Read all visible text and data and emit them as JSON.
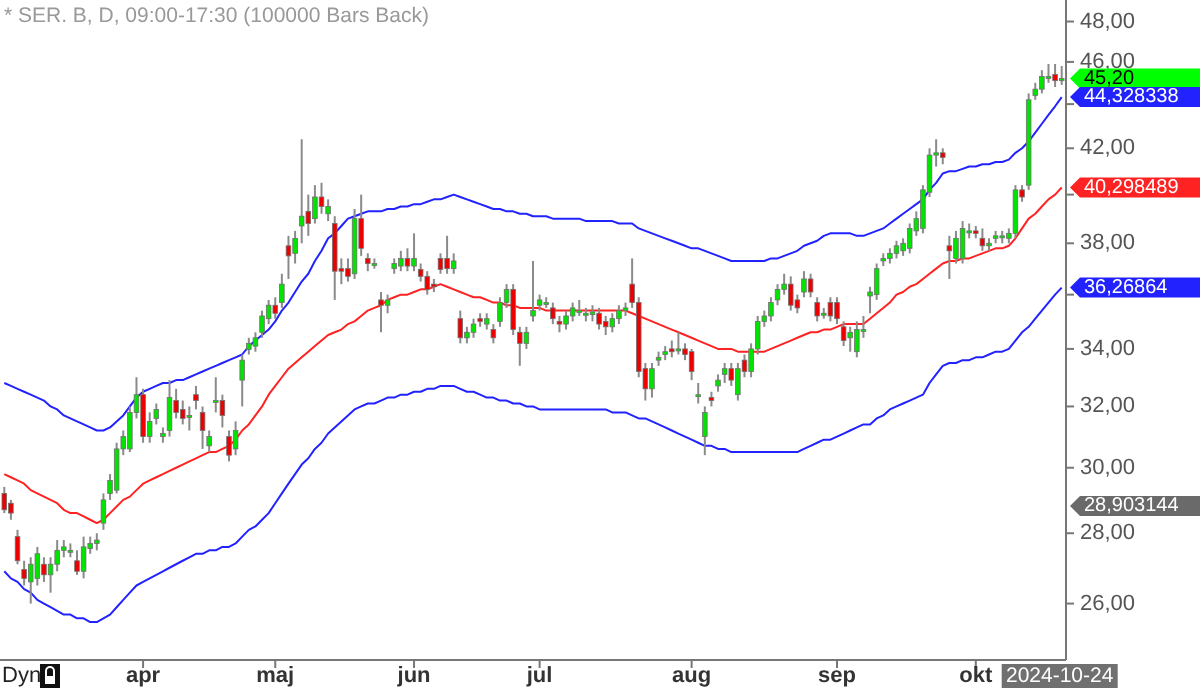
{
  "chart_data": {
    "type": "candlestick",
    "title": "* SER. B, D, 09:00-17:30 (100000 Bars Back)",
    "categories": [
      null,
      null,
      null,
      null,
      null,
      null,
      null,
      null,
      null,
      null,
      null,
      null,
      null,
      null,
      null,
      null,
      null,
      null,
      null,
      null,
      null,
      "apr",
      null,
      null,
      null,
      null,
      null,
      null,
      null,
      null,
      null,
      null,
      null,
      null,
      null,
      null,
      null,
      null,
      null,
      null,
      null,
      "maj",
      null,
      null,
      null,
      null,
      null,
      null,
      null,
      null,
      null,
      null,
      null,
      null,
      null,
      null,
      null,
      null,
      null,
      null,
      null,
      null,
      "jun",
      null,
      null,
      null,
      null,
      null,
      null,
      null,
      null,
      null,
      null,
      null,
      null,
      null,
      null,
      null,
      null,
      null,
      null,
      "jul",
      null,
      null,
      null,
      null,
      null,
      null,
      null,
      null,
      null,
      null,
      null,
      null,
      null,
      null,
      null,
      null,
      null,
      null,
      null,
      null,
      null,
      null,
      "aug",
      null,
      null,
      null,
      null,
      null,
      null,
      null,
      null,
      null,
      null,
      null,
      null,
      null,
      null,
      null,
      null,
      null,
      null,
      null,
      null,
      null,
      "sep",
      null,
      null,
      null,
      null,
      null,
      null,
      null,
      null,
      null,
      null,
      null,
      null,
      null,
      null,
      null,
      null,
      null,
      null,
      null,
      null,
      "okt",
      null,
      null,
      null,
      null,
      null,
      null,
      null,
      null,
      null,
      null,
      null,
      null,
      null
    ],
    "ohlc": [
      [
        29.2,
        29.4,
        28.6,
        28.7
      ],
      [
        28.9,
        29.0,
        28.4,
        28.6
      ],
      [
        27.9,
        28.1,
        27.1,
        27.2
      ],
      [
        26.95,
        27.2,
        26.5,
        26.7
      ],
      [
        26.6,
        27.3,
        26.0,
        27.1
      ],
      [
        26.7,
        27.6,
        26.5,
        27.4
      ],
      [
        27.1,
        27.3,
        26.6,
        26.8
      ],
      [
        26.8,
        27.3,
        26.3,
        27.1
      ],
      [
        27.1,
        27.8,
        26.9,
        27.5
      ],
      [
        27.5,
        27.8,
        27.3,
        27.6
      ],
      [
        27.5,
        27.7,
        27.3,
        27.5
      ],
      [
        27.2,
        27.5,
        26.8,
        26.9
      ],
      [
        26.9,
        27.9,
        26.7,
        27.6
      ],
      [
        27.55,
        27.9,
        27.4,
        27.7
      ],
      [
        27.7,
        28.0,
        27.5,
        27.8
      ],
      [
        28.3,
        29.2,
        28.1,
        29.0
      ],
      [
        29.2,
        29.8,
        29.0,
        29.6
      ],
      [
        29.3,
        30.8,
        29.2,
        30.6
      ],
      [
        30.6,
        31.2,
        30.4,
        31.0
      ],
      [
        30.6,
        32.0,
        30.5,
        31.8
      ],
      [
        31.8,
        33.0,
        31.6,
        32.4
      ],
      [
        32.4,
        32.6,
        30.8,
        31.0
      ],
      [
        31.0,
        31.8,
        30.8,
        31.5
      ],
      [
        31.6,
        32.1,
        31.4,
        31.9
      ],
      [
        31.0,
        31.3,
        30.8,
        31.1
      ],
      [
        31.2,
        32.9,
        31.0,
        32.3
      ],
      [
        32.2,
        32.6,
        31.6,
        31.8
      ],
      [
        31.9,
        32.2,
        31.4,
        31.6
      ],
      [
        31.7,
        32.0,
        31.2,
        31.7
      ],
      [
        32.4,
        32.7,
        31.9,
        32.2
      ],
      [
        31.8,
        32.0,
        30.6,
        31.2
      ],
      [
        30.7,
        31.2,
        30.5,
        31.0
      ],
      [
        32.2,
        33.0,
        31.8,
        32.2
      ],
      [
        32.2,
        32.4,
        31.3,
        31.7
      ],
      [
        31.0,
        31.2,
        30.2,
        30.4
      ],
      [
        30.6,
        31.5,
        30.4,
        31.2
      ],
      [
        32.9,
        33.8,
        32.0,
        33.6
      ],
      [
        33.98,
        34.4,
        33.8,
        34.2
      ],
      [
        34.1,
        34.6,
        33.9,
        34.4
      ],
      [
        34.6,
        35.4,
        34.4,
        35.2
      ],
      [
        35.1,
        35.8,
        34.9,
        35.6
      ],
      [
        35.6,
        35.9,
        35.1,
        35.3
      ],
      [
        35.7,
        36.8,
        35.5,
        36.4
      ],
      [
        37.9,
        38.3,
        36.6,
        37.5
      ],
      [
        37.6,
        38.5,
        37.2,
        38.2
      ],
      [
        38.7,
        42.4,
        38.0,
        39.1
      ],
      [
        39.3,
        40.0,
        38.3,
        38.8
      ],
      [
        39.0,
        40.4,
        38.8,
        39.9
      ],
      [
        39.9,
        40.5,
        39.2,
        39.5
      ],
      [
        39.2,
        39.8,
        38.9,
        39.5
      ],
      [
        38.8,
        39.1,
        35.8,
        36.9
      ],
      [
        37.0,
        37.4,
        36.4,
        36.9
      ],
      [
        37.0,
        37.4,
        36.5,
        36.7
      ],
      [
        36.8,
        39.4,
        36.6,
        39.0
      ],
      [
        39.0,
        40.0,
        37.5,
        37.8
      ],
      [
        37.4,
        37.6,
        36.9,
        37.2
      ],
      [
        37.2,
        37.4,
        37.0,
        37.2
      ],
      [
        35.8,
        36.1,
        34.6,
        35.6
      ],
      [
        35.6,
        36.0,
        35.3,
        35.8
      ],
      [
        37.0,
        37.4,
        36.8,
        37.2
      ],
      [
        37.1,
        37.7,
        36.9,
        37.4
      ],
      [
        37.4,
        37.8,
        36.9,
        37.1
      ],
      [
        37.1,
        38.4,
        36.9,
        37.4
      ],
      [
        36.97,
        37.2,
        36.5,
        36.7
      ],
      [
        36.7,
        36.9,
        36.0,
        36.2
      ],
      [
        36.4,
        36.6,
        36.1,
        36.3
      ],
      [
        37.4,
        37.6,
        36.8,
        36.97
      ],
      [
        37.4,
        38.3,
        36.8,
        37.0
      ],
      [
        37.0,
        37.6,
        36.8,
        37.3
      ],
      [
        35.1,
        35.4,
        34.2,
        34.4
      ],
      [
        34.4,
        34.8,
        34.2,
        34.6
      ],
      [
        34.6,
        35.1,
        34.4,
        34.9
      ],
      [
        35.1,
        35.3,
        34.8,
        35.0
      ],
      [
        34.9,
        35.3,
        34.7,
        35.1
      ],
      [
        34.7,
        34.9,
        34.2,
        34.4
      ],
      [
        35.0,
        35.9,
        34.8,
        35.7
      ],
      [
        35.7,
        36.4,
        35.5,
        36.2
      ],
      [
        36.2,
        36.4,
        34.5,
        34.7
      ],
      [
        34.6,
        34.8,
        33.4,
        34.2
      ],
      [
        34.2,
        34.8,
        34.0,
        34.6
      ],
      [
        35.2,
        37.3,
        35.0,
        35.4
      ],
      [
        35.6,
        36.0,
        35.4,
        35.8
      ],
      [
        35.7,
        35.9,
        35.5,
        35.7
      ],
      [
        35.5,
        35.7,
        34.9,
        35.1
      ],
      [
        35.0,
        35.2,
        34.6,
        34.9
      ],
      [
        34.9,
        35.4,
        34.7,
        35.2
      ],
      [
        35.2,
        35.7,
        35.0,
        35.5
      ],
      [
        35.4,
        35.8,
        35.2,
        35.4
      ],
      [
        35.3,
        35.5,
        35.0,
        35.3
      ],
      [
        35.25,
        35.6,
        35.0,
        35.35
      ],
      [
        35.3,
        35.5,
        34.7,
        34.9
      ],
      [
        35.0,
        35.2,
        34.5,
        34.8
      ],
      [
        34.8,
        35.3,
        34.6,
        35.1
      ],
      [
        35.1,
        35.6,
        34.9,
        35.4
      ],
      [
        35.4,
        35.7,
        35.2,
        35.5
      ],
      [
        36.4,
        37.4,
        35.5,
        35.7
      ],
      [
        35.7,
        35.9,
        33.0,
        33.2
      ],
      [
        33.3,
        33.5,
        32.2,
        32.6
      ],
      [
        32.6,
        33.5,
        32.3,
        33.3
      ],
      [
        33.6,
        33.9,
        33.4,
        33.7
      ],
      [
        33.8,
        34.1,
        33.6,
        33.9
      ],
      [
        34.0,
        34.3,
        33.7,
        33.9
      ],
      [
        34.0,
        34.6,
        33.8,
        34.0
      ],
      [
        34.0,
        34.2,
        33.6,
        33.8
      ],
      [
        33.9,
        34.0,
        32.9,
        33.2
      ],
      [
        32.4,
        32.8,
        32.1,
        32.4
      ],
      [
        31.0,
        32.0,
        30.4,
        31.8
      ],
      [
        32.3,
        32.5,
        32.0,
        32.2
      ],
      [
        32.7,
        33.1,
        32.5,
        32.9
      ],
      [
        33.1,
        33.5,
        32.8,
        33.3
      ],
      [
        33.3,
        33.5,
        32.7,
        32.9
      ],
      [
        32.4,
        33.5,
        32.2,
        33.3
      ],
      [
        33.6,
        33.8,
        33.0,
        33.2
      ],
      [
        33.2,
        34.2,
        33.0,
        34.0
      ],
      [
        34.0,
        35.2,
        33.8,
        35.0
      ],
      [
        35.0,
        35.4,
        34.8,
        35.2
      ],
      [
        35.2,
        35.9,
        35.0,
        35.7
      ],
      [
        35.8,
        36.4,
        35.6,
        36.2
      ],
      [
        36.2,
        36.8,
        36.0,
        36.4
      ],
      [
        36.4,
        36.7,
        35.4,
        35.6
      ],
      [
        35.8,
        36.0,
        35.3,
        35.5
      ],
      [
        36.1,
        36.9,
        35.9,
        36.6
      ],
      [
        36.6,
        36.8,
        35.9,
        36.1
      ],
      [
        35.7,
        35.9,
        35.0,
        35.2
      ],
      [
        35.3,
        35.5,
        35.1,
        35.3
      ],
      [
        35.7,
        35.9,
        35.0,
        35.2
      ],
      [
        35.7,
        35.9,
        34.9,
        35.1
      ],
      [
        34.8,
        35.0,
        34.1,
        34.3
      ],
      [
        34.4,
        34.8,
        33.9,
        34.6
      ],
      [
        33.9,
        35.0,
        33.7,
        34.7
      ],
      [
        34.7,
        35.2,
        34.4,
        34.7
      ],
      [
        35.95,
        36.3,
        35.3,
        36.1
      ],
      [
        36.0,
        37.2,
        35.8,
        37.0
      ],
      [
        37.3,
        37.6,
        37.1,
        37.4
      ],
      [
        37.4,
        37.8,
        37.2,
        37.6
      ],
      [
        37.6,
        38.1,
        37.4,
        37.9
      ],
      [
        37.7,
        38.2,
        37.5,
        38.0
      ],
      [
        37.8,
        38.8,
        37.6,
        38.6
      ],
      [
        38.5,
        39.3,
        38.3,
        39.0
      ],
      [
        38.6,
        40.4,
        38.4,
        40.2
      ],
      [
        40.1,
        42.0,
        39.9,
        41.7
      ],
      [
        41.7,
        42.4,
        41.2,
        41.8
      ],
      [
        41.8,
        42.0,
        41.3,
        41.6
      ],
      [
        37.9,
        38.3,
        36.6,
        37.7
      ],
      [
        37.4,
        38.5,
        37.2,
        38.2
      ],
      [
        37.4,
        38.9,
        37.2,
        38.6
      ],
      [
        38.5,
        38.8,
        38.2,
        38.5
      ],
      [
        38.5,
        38.7,
        38.2,
        38.4
      ],
      [
        38.2,
        38.6,
        37.7,
        37.9
      ],
      [
        37.9,
        38.2,
        37.7,
        38.0
      ],
      [
        38.2,
        38.5,
        38.0,
        38.3
      ],
      [
        38.3,
        38.5,
        38.0,
        38.3
      ],
      [
        38.2,
        38.6,
        38.0,
        38.4
      ],
      [
        38.4,
        40.4,
        38.2,
        40.2
      ],
      [
        40.2,
        40.4,
        39.7,
        39.9
      ],
      [
        40.4,
        44.5,
        40.2,
        44.2
      ],
      [
        44.4,
        45.0,
        44.2,
        44.7
      ],
      [
        44.7,
        45.6,
        44.5,
        45.3
      ],
      [
        45.3,
        45.9,
        45.0,
        45.3
      ],
      [
        45.4,
        45.9,
        44.8,
        45.1
      ],
      [
        45.1,
        45.8,
        44.9,
        45.2
      ]
    ],
    "series": [
      {
        "type": "line",
        "color": "#2222ff",
        "value_labels": [
          null,
          null,
          null,
          null,
          null,
          null,
          null,
          null,
          null,
          null,
          null,
          null,
          null,
          null,
          null,
          null,
          null,
          null,
          null,
          null,
          null,
          null,
          null,
          null,
          null,
          null,
          null,
          null,
          null,
          null,
          null,
          null,
          null,
          null,
          null,
          null,
          null,
          null,
          null,
          null,
          null,
          null,
          null,
          null,
          null,
          null,
          null,
          null,
          null,
          null,
          null,
          null,
          null,
          null,
          null,
          null,
          null,
          null,
          null,
          null,
          null,
          null,
          null,
          null,
          null,
          null,
          null,
          null,
          null,
          null,
          null,
          null,
          null,
          null,
          null,
          null,
          null,
          null,
          null,
          null,
          null,
          null,
          null,
          null,
          null,
          null,
          null,
          null,
          null,
          null,
          null,
          null,
          null,
          null,
          null,
          null,
          null,
          null,
          null,
          null,
          null,
          null,
          null,
          null,
          null,
          null,
          null,
          null,
          null,
          null,
          null,
          null,
          null,
          null,
          null,
          null,
          null,
          null,
          null,
          null,
          null,
          null,
          null,
          null,
          null,
          null,
          null,
          null,
          null,
          null,
          null,
          null,
          null,
          null,
          null,
          null,
          null,
          null,
          null,
          null,
          null,
          null,
          null,
          null,
          null,
          null,
          null,
          null,
          null,
          null,
          null,
          null,
          null,
          null,
          null,
          null,
          null,
          null,
          null,
          null,
          "44,328338"
        ],
        "values": [
          32.8,
          32.7,
          32.6,
          32.5,
          32.4,
          32.3,
          32.2,
          32.0,
          31.9,
          31.7,
          31.6,
          31.5,
          31.4,
          31.3,
          31.2,
          31.2,
          31.3,
          31.5,
          31.7,
          32.0,
          32.3,
          32.5,
          32.6,
          32.7,
          32.8,
          32.8,
          32.9,
          32.9,
          33.0,
          33.1,
          33.2,
          33.3,
          33.4,
          33.5,
          33.6,
          33.7,
          33.8,
          34.1,
          34.3,
          34.5,
          34.7,
          35.0,
          35.4,
          35.7,
          36.1,
          36.5,
          36.8,
          37.3,
          37.7,
          38.2,
          38.4,
          38.7,
          39.0,
          39.1,
          39.2,
          39.3,
          39.3,
          39.3,
          39.4,
          39.4,
          39.5,
          39.5,
          39.6,
          39.6,
          39.7,
          39.8,
          39.8,
          39.9,
          40.0,
          39.9,
          39.8,
          39.7,
          39.6,
          39.5,
          39.4,
          39.4,
          39.3,
          39.3,
          39.2,
          39.2,
          39.1,
          39.1,
          39.1,
          39.0,
          39.0,
          39.0,
          39.0,
          39.0,
          38.9,
          38.9,
          38.9,
          38.9,
          38.9,
          38.8,
          38.8,
          38.8,
          38.6,
          38.5,
          38.4,
          38.3,
          38.2,
          38.1,
          38.0,
          37.9,
          37.8,
          37.8,
          37.7,
          37.6,
          37.5,
          37.4,
          37.3,
          37.3,
          37.3,
          37.3,
          37.3,
          37.3,
          37.4,
          37.4,
          37.5,
          37.6,
          37.7,
          37.9,
          38.0,
          38.1,
          38.3,
          38.4,
          38.4,
          38.4,
          38.4,
          38.3,
          38.3,
          38.4,
          38.5,
          38.6,
          38.8,
          39.0,
          39.2,
          39.4,
          39.6,
          39.8,
          40.2,
          40.5,
          40.9,
          41.0,
          41.0,
          41.1,
          41.2,
          41.2,
          41.3,
          41.3,
          41.4,
          41.4,
          41.5,
          41.8,
          42.0,
          42.3,
          42.7,
          43.1,
          43.5,
          43.9,
          44.328338
        ]
      },
      {
        "type": "line",
        "color": "#ff2222",
        "value_labels": [
          null,
          null,
          null,
          null,
          null,
          null,
          null,
          null,
          null,
          null,
          null,
          null,
          null,
          null,
          null,
          null,
          null,
          null,
          null,
          null,
          null,
          null,
          null,
          null,
          null,
          null,
          null,
          null,
          null,
          null,
          null,
          null,
          null,
          null,
          null,
          null,
          null,
          null,
          null,
          null,
          null,
          null,
          null,
          null,
          null,
          null,
          null,
          null,
          null,
          null,
          null,
          null,
          null,
          null,
          null,
          null,
          null,
          null,
          null,
          null,
          null,
          null,
          null,
          null,
          null,
          null,
          null,
          null,
          null,
          null,
          null,
          null,
          null,
          null,
          null,
          null,
          null,
          null,
          null,
          null,
          null,
          null,
          null,
          null,
          null,
          null,
          null,
          null,
          null,
          null,
          null,
          null,
          null,
          null,
          null,
          null,
          null,
          null,
          null,
          null,
          null,
          null,
          null,
          null,
          null,
          null,
          null,
          null,
          null,
          null,
          null,
          null,
          null,
          null,
          null,
          null,
          null,
          null,
          null,
          null,
          null,
          null,
          null,
          null,
          null,
          null,
          null,
          null,
          null,
          null,
          null,
          null,
          null,
          null,
          null,
          null,
          null,
          null,
          null,
          null,
          null,
          null,
          null,
          null,
          null,
          null,
          null,
          null,
          null,
          null,
          null,
          null,
          null,
          null,
          null,
          null,
          null,
          null,
          null,
          null,
          "40,298489"
        ],
        "values": [
          29.8,
          29.7,
          29.6,
          29.5,
          29.3,
          29.2,
          29.1,
          29.0,
          28.9,
          28.7,
          28.6,
          28.6,
          28.5,
          28.4,
          28.3,
          28.4,
          28.6,
          28.8,
          29.0,
          29.1,
          29.3,
          29.5,
          29.6,
          29.7,
          29.8,
          29.9,
          30.0,
          30.1,
          30.2,
          30.3,
          30.4,
          30.5,
          30.5,
          30.6,
          30.7,
          30.9,
          31.2,
          31.4,
          31.7,
          32.0,
          32.4,
          32.7,
          33.0,
          33.3,
          33.5,
          33.7,
          33.9,
          34.1,
          34.3,
          34.5,
          34.6,
          34.7,
          34.9,
          35.0,
          35.2,
          35.4,
          35.5,
          35.6,
          35.8,
          35.9,
          36.0,
          36.0,
          36.1,
          36.2,
          36.2,
          36.3,
          36.4,
          36.3,
          36.2,
          36.1,
          36.0,
          35.9,
          35.9,
          35.8,
          35.7,
          35.7,
          35.6,
          35.6,
          35.5,
          35.5,
          35.5,
          35.5,
          35.4,
          35.4,
          35.4,
          35.4,
          35.4,
          35.4,
          35.4,
          35.4,
          35.4,
          35.4,
          35.4,
          35.4,
          35.4,
          35.3,
          35.2,
          35.1,
          35.0,
          34.9,
          34.8,
          34.7,
          34.6,
          34.5,
          34.4,
          34.3,
          34.2,
          34.1,
          34.0,
          34.0,
          34.0,
          33.9,
          33.9,
          33.9,
          33.9,
          33.9,
          34.0,
          34.1,
          34.2,
          34.3,
          34.4,
          34.5,
          34.6,
          34.6,
          34.7,
          34.7,
          34.8,
          34.9,
          34.9,
          34.9,
          34.9,
          35.1,
          35.3,
          35.5,
          35.7,
          36.0,
          36.1,
          36.3,
          36.4,
          36.6,
          36.8,
          37.0,
          37.2,
          37.3,
          37.3,
          37.4,
          37.4,
          37.5,
          37.6,
          37.7,
          37.8,
          37.8,
          37.9,
          38.2,
          38.6,
          39.0,
          39.2,
          39.5,
          39.8,
          40.0,
          40.298489
        ]
      },
      {
        "type": "line",
        "color": "#2222ff",
        "value_labels": [
          null,
          null,
          null,
          null,
          null,
          null,
          null,
          null,
          null,
          null,
          null,
          null,
          null,
          null,
          null,
          null,
          null,
          null,
          null,
          null,
          null,
          null,
          null,
          null,
          null,
          null,
          null,
          null,
          null,
          null,
          null,
          null,
          null,
          null,
          null,
          null,
          null,
          null,
          null,
          null,
          null,
          null,
          null,
          null,
          null,
          null,
          null,
          null,
          null,
          null,
          null,
          null,
          null,
          null,
          null,
          null,
          null,
          null,
          null,
          null,
          null,
          null,
          null,
          null,
          null,
          null,
          null,
          null,
          null,
          null,
          null,
          null,
          null,
          null,
          null,
          null,
          null,
          null,
          null,
          null,
          null,
          null,
          null,
          null,
          null,
          null,
          null,
          null,
          null,
          null,
          null,
          null,
          null,
          null,
          null,
          null,
          null,
          null,
          null,
          null,
          null,
          null,
          null,
          null,
          null,
          null,
          null,
          null,
          null,
          null,
          null,
          null,
          null,
          null,
          null,
          null,
          null,
          null,
          null,
          null,
          null,
          null,
          null,
          null,
          null,
          null,
          null,
          null,
          null,
          null,
          null,
          null,
          null,
          null,
          null,
          null,
          null,
          null,
          null,
          null,
          null,
          null,
          null,
          null,
          null,
          null,
          null,
          null,
          null,
          null,
          null,
          null,
          null,
          null,
          null,
          null,
          null,
          null,
          null,
          null,
          "36,26864"
        ],
        "values": [
          26.9,
          26.7,
          26.6,
          26.4,
          26.3,
          26.1,
          26.0,
          25.9,
          25.8,
          25.7,
          25.7,
          25.6,
          25.6,
          25.5,
          25.5,
          25.6,
          25.7,
          25.9,
          26.1,
          26.3,
          26.5,
          26.6,
          26.7,
          26.8,
          26.9,
          27.0,
          27.1,
          27.2,
          27.3,
          27.4,
          27.4,
          27.5,
          27.5,
          27.6,
          27.6,
          27.7,
          27.9,
          28.1,
          28.2,
          28.4,
          28.6,
          28.9,
          29.2,
          29.5,
          29.8,
          30.1,
          30.3,
          30.6,
          30.8,
          31.1,
          31.3,
          31.5,
          31.7,
          31.9,
          32.0,
          32.1,
          32.1,
          32.2,
          32.3,
          32.3,
          32.4,
          32.4,
          32.5,
          32.5,
          32.6,
          32.6,
          32.7,
          32.7,
          32.7,
          32.6,
          32.5,
          32.5,
          32.4,
          32.3,
          32.3,
          32.2,
          32.2,
          32.1,
          32.1,
          32.0,
          32.0,
          31.9,
          31.9,
          31.9,
          31.9,
          31.9,
          31.9,
          31.9,
          31.9,
          31.9,
          31.9,
          31.9,
          31.8,
          31.8,
          31.8,
          31.7,
          31.6,
          31.6,
          31.5,
          31.4,
          31.3,
          31.2,
          31.1,
          31.0,
          30.9,
          30.8,
          30.7,
          30.7,
          30.6,
          30.6,
          30.5,
          30.5,
          30.5,
          30.5,
          30.5,
          30.5,
          30.5,
          30.5,
          30.5,
          30.5,
          30.5,
          30.6,
          30.7,
          30.8,
          30.9,
          30.9,
          31.0,
          31.1,
          31.2,
          31.3,
          31.4,
          31.4,
          31.6,
          31.7,
          31.9,
          32.0,
          32.1,
          32.2,
          32.3,
          32.4,
          32.8,
          33.1,
          33.4,
          33.5,
          33.5,
          33.6,
          33.6,
          33.7,
          33.7,
          33.8,
          33.9,
          33.9,
          34.0,
          34.3,
          34.6,
          34.8,
          35.1,
          35.4,
          35.7,
          36.0,
          36.26864
        ]
      }
    ],
    "ylim": [
      24.5,
      49.1
    ],
    "yticks": [
      {
        "value": 26,
        "label": "26,00"
      },
      {
        "value": 28,
        "label": "28,00"
      },
      {
        "value": 30,
        "label": "30,00"
      },
      {
        "value": 32,
        "label": "32,00"
      },
      {
        "value": 34,
        "label": "34,00"
      },
      {
        "value": 36,
        "label": null
      },
      {
        "value": 38,
        "label": "38,00"
      },
      {
        "value": 40,
        "label": null
      },
      {
        "value": 42,
        "label": "42,00"
      },
      {
        "value": 44,
        "label": null
      },
      {
        "value": 46,
        "label": "46,00"
      },
      {
        "value": 48,
        "label": "48,00"
      }
    ],
    "log": true,
    "value_labels": [
      null,
      null,
      null,
      null,
      null,
      null,
      null,
      null,
      null,
      null,
      null,
      null,
      null,
      null,
      null,
      null,
      null,
      null,
      null,
      null,
      null,
      null,
      null,
      null,
      null,
      null,
      null,
      null,
      null,
      null,
      null,
      null,
      null,
      null,
      null,
      null,
      null,
      null,
      null,
      null,
      null,
      null,
      null,
      null,
      null,
      null,
      null,
      null,
      null,
      null,
      null,
      null,
      null,
      null,
      null,
      null,
      null,
      null,
      null,
      null,
      null,
      null,
      null,
      null,
      null,
      null,
      null,
      null,
      null,
      null,
      null,
      null,
      null,
      null,
      null,
      null,
      null,
      null,
      null,
      null,
      null,
      null,
      null,
      null,
      null,
      null,
      null,
      null,
      null,
      null,
      null,
      null,
      null,
      null,
      null,
      null,
      null,
      null,
      null,
      null,
      null,
      null,
      null,
      null,
      null,
      null,
      null,
      null,
      null,
      null,
      null,
      null,
      null,
      null,
      null,
      null,
      null,
      null,
      null,
      null,
      null,
      null,
      null,
      null,
      null,
      null,
      null,
      null,
      null,
      null,
      null,
      null,
      null,
      null,
      null,
      null,
      null,
      null,
      null,
      null,
      null,
      null,
      null,
      null,
      null,
      null,
      null,
      null,
      null,
      null,
      null,
      null,
      null,
      null,
      null,
      null,
      null,
      null,
      null,
      null,
      "45,20"
    ],
    "annotations": [
      "Dyn",
      "2024-10-24",
      "28,903144"
    ]
  }
}
